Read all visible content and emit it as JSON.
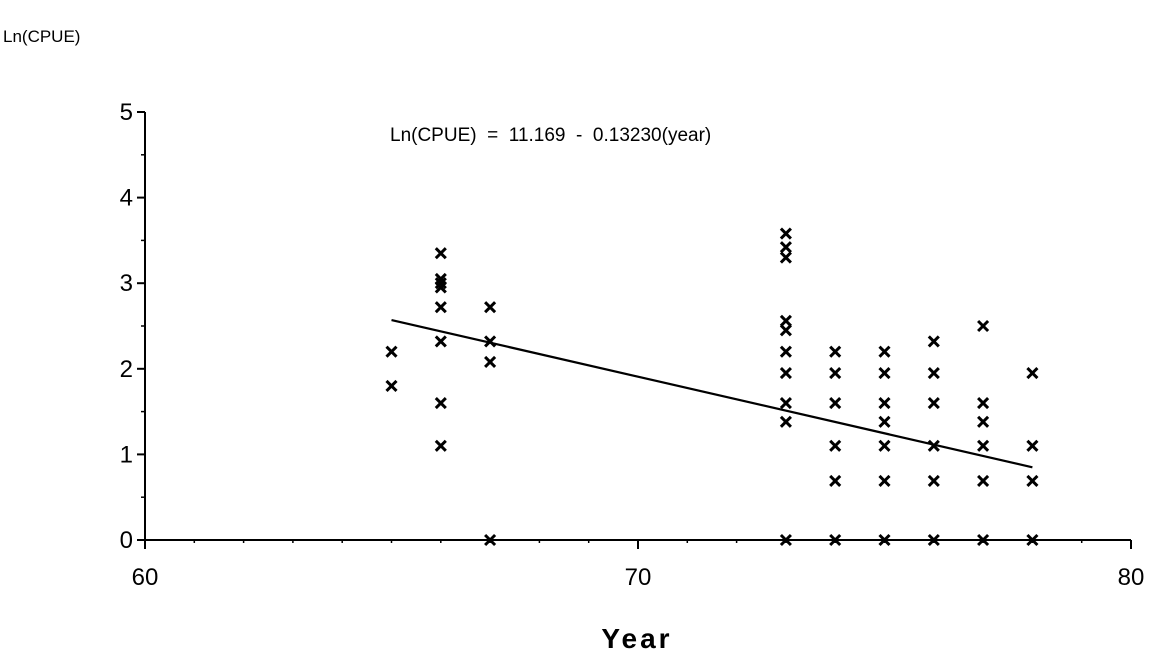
{
  "chart_data": {
    "type": "scatter",
    "ylabel": "Ln(CPUE)",
    "xlabel": "Year",
    "xlim": [
      60,
      80
    ],
    "ylim": [
      0,
      5
    ],
    "x_ticks": [
      60,
      70,
      80
    ],
    "y_ticks": [
      0,
      1,
      2,
      3,
      4,
      5
    ],
    "grid": false,
    "marker": "x",
    "annotation": "Ln(CPUE)  =  11.169  -  0.13230(year)",
    "regression": {
      "intercept": 11.169,
      "slope": -0.1323,
      "x_range": [
        65,
        78
      ]
    },
    "points": [
      {
        "x": 65,
        "y": 2.2
      },
      {
        "x": 65,
        "y": 1.8
      },
      {
        "x": 66,
        "y": 3.35
      },
      {
        "x": 66,
        "y": 3.05
      },
      {
        "x": 66,
        "y": 3.0
      },
      {
        "x": 66,
        "y": 2.95
      },
      {
        "x": 66,
        "y": 2.72
      },
      {
        "x": 66,
        "y": 2.32
      },
      {
        "x": 66,
        "y": 1.6
      },
      {
        "x": 66,
        "y": 1.1
      },
      {
        "x": 67,
        "y": 2.72
      },
      {
        "x": 67,
        "y": 2.32
      },
      {
        "x": 67,
        "y": 2.08
      },
      {
        "x": 67,
        "y": 0
      },
      {
        "x": 73,
        "y": 3.58
      },
      {
        "x": 73,
        "y": 3.42
      },
      {
        "x": 73,
        "y": 3.3
      },
      {
        "x": 73,
        "y": 2.56
      },
      {
        "x": 73,
        "y": 2.45
      },
      {
        "x": 73,
        "y": 2.2
      },
      {
        "x": 73,
        "y": 1.95
      },
      {
        "x": 73,
        "y": 1.6
      },
      {
        "x": 73,
        "y": 1.38
      },
      {
        "x": 73,
        "y": 0
      },
      {
        "x": 74,
        "y": 2.2
      },
      {
        "x": 74,
        "y": 1.95
      },
      {
        "x": 74,
        "y": 1.6
      },
      {
        "x": 74,
        "y": 1.1
      },
      {
        "x": 74,
        "y": 0.69
      },
      {
        "x": 74,
        "y": 0
      },
      {
        "x": 75,
        "y": 2.2
      },
      {
        "x": 75,
        "y": 1.95
      },
      {
        "x": 75,
        "y": 1.6
      },
      {
        "x": 75,
        "y": 1.38
      },
      {
        "x": 75,
        "y": 1.1
      },
      {
        "x": 75,
        "y": 0.69
      },
      {
        "x": 75,
        "y": 0
      },
      {
        "x": 76,
        "y": 2.32
      },
      {
        "x": 76,
        "y": 1.95
      },
      {
        "x": 76,
        "y": 1.6
      },
      {
        "x": 76,
        "y": 1.1
      },
      {
        "x": 76,
        "y": 0.69
      },
      {
        "x": 76,
        "y": 0
      },
      {
        "x": 77,
        "y": 2.5
      },
      {
        "x": 77,
        "y": 1.6
      },
      {
        "x": 77,
        "y": 1.38
      },
      {
        "x": 77,
        "y": 1.1
      },
      {
        "x": 77,
        "y": 0.69
      },
      {
        "x": 77,
        "y": 0
      },
      {
        "x": 78,
        "y": 1.95
      },
      {
        "x": 78,
        "y": 1.1
      },
      {
        "x": 78,
        "y": 0.69
      },
      {
        "x": 78,
        "y": 0
      }
    ]
  }
}
